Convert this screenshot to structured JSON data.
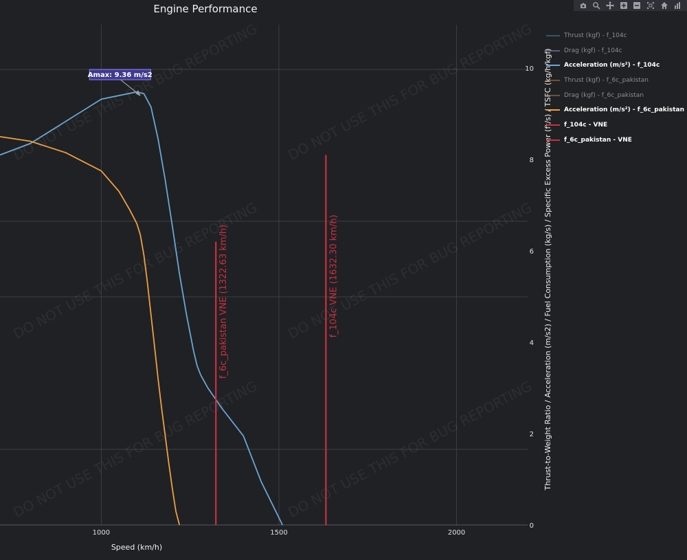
{
  "chart_data": {
    "type": "line",
    "title": "Engine Performance",
    "xlabel": "Speed (km/h)",
    "ylabel": "Thrust-to-Weight Ratio / Acceleration (m/s2) / Fuel Consumption (kg/s) / Specific Excess Power (ft/s) / TSFC (kg/h/kgf)",
    "xlim": [
      715,
      2200
    ],
    "ylim": [
      0,
      10.95
    ],
    "x_ticks": [
      1000,
      1500,
      2000
    ],
    "x_tick_labels": [
      "1000",
      "1500",
      "2000"
    ],
    "y_ticks": [
      0,
      2,
      4,
      6,
      8,
      10
    ],
    "y_tick_labels": [
      "0",
      "2",
      "4",
      "6",
      "8",
      "10"
    ],
    "grid": true,
    "legend_position": "right",
    "series": [
      {
        "name": "Thrust (kgf) - f_104c",
        "color": "#4f86b5",
        "visible": false
      },
      {
        "name": "Drag (kgf) - f_104c",
        "color": "#8aa8c4",
        "visible": false
      },
      {
        "name": "Acceleration (m/s²) - f_104c",
        "color": "#6aa7d6",
        "visible": true,
        "x": [
          715,
          800,
          1000,
          1100,
          1120,
          1140,
          1160,
          1180,
          1200,
          1220,
          1240,
          1260,
          1270,
          1280,
          1300,
          1340,
          1400,
          1450,
          1510
        ],
        "y": [
          8.1,
          8.35,
          9.32,
          9.48,
          9.44,
          9.15,
          8.45,
          7.55,
          6.55,
          5.5,
          4.6,
          3.8,
          3.48,
          3.28,
          3.0,
          2.55,
          1.95,
          0.95,
          0.0
        ]
      },
      {
        "name": "Thrust (kgf) - f_6c_pakistan",
        "color": "#c77f3a",
        "visible": false
      },
      {
        "name": "Drag (kgf) - f_6c_pakistan",
        "color": "#b08a5a",
        "visible": false
      },
      {
        "name": "Acceleration (m/s²) - f_6c_pakistan",
        "color": "#f0a040",
        "visible": true,
        "x": [
          715,
          800,
          900,
          1000,
          1050,
          1080,
          1100,
          1110,
          1120,
          1130,
          1140,
          1150,
          1160,
          1170,
          1180,
          1190,
          1200,
          1210,
          1220
        ],
        "y": [
          8.5,
          8.4,
          8.15,
          7.75,
          7.3,
          6.9,
          6.6,
          6.35,
          5.9,
          5.3,
          4.6,
          3.9,
          3.2,
          2.55,
          1.95,
          1.35,
          0.8,
          0.3,
          0.0
        ]
      },
      {
        "name": "f_104c - VNE",
        "color": "#c8313f",
        "visible": true,
        "x": [
          1632.3,
          1632.3
        ],
        "y": [
          0,
          8.1
        ]
      },
      {
        "name": "f_6c_pakistan - VNE",
        "color": "#c8313f",
        "visible": true,
        "x": [
          1322.63,
          1322.63
        ],
        "y": [
          0,
          6.2
        ]
      }
    ],
    "annotations": [
      {
        "text": "f_6c_pakistan VNE (1322.63 km/h)",
        "x": 1322.63,
        "y": 3.2
      },
      {
        "text": "f_104c VNE (1632.30 km/h)",
        "x": 1632.3,
        "y": 4.1
      }
    ],
    "max_annotation": {
      "text": "Amax: 9.36 m/s2",
      "x": 1110,
      "y": 9.43
    }
  },
  "watermark_text": "DO NOT USE THIS FOR BUG REPORTING",
  "modebar": [
    {
      "name": "camera-icon",
      "glyph": "camera"
    },
    {
      "name": "zoom-icon",
      "glyph": "zoom"
    },
    {
      "name": "pan-icon",
      "glyph": "pan"
    },
    {
      "name": "zoom-in-icon",
      "glyph": "plus"
    },
    {
      "name": "zoom-out-icon",
      "glyph": "minus"
    },
    {
      "name": "autoscale-icon",
      "glyph": "autoscale"
    },
    {
      "name": "home-icon",
      "glyph": "home"
    },
    {
      "name": "plotly-logo-icon",
      "glyph": "bars"
    }
  ]
}
